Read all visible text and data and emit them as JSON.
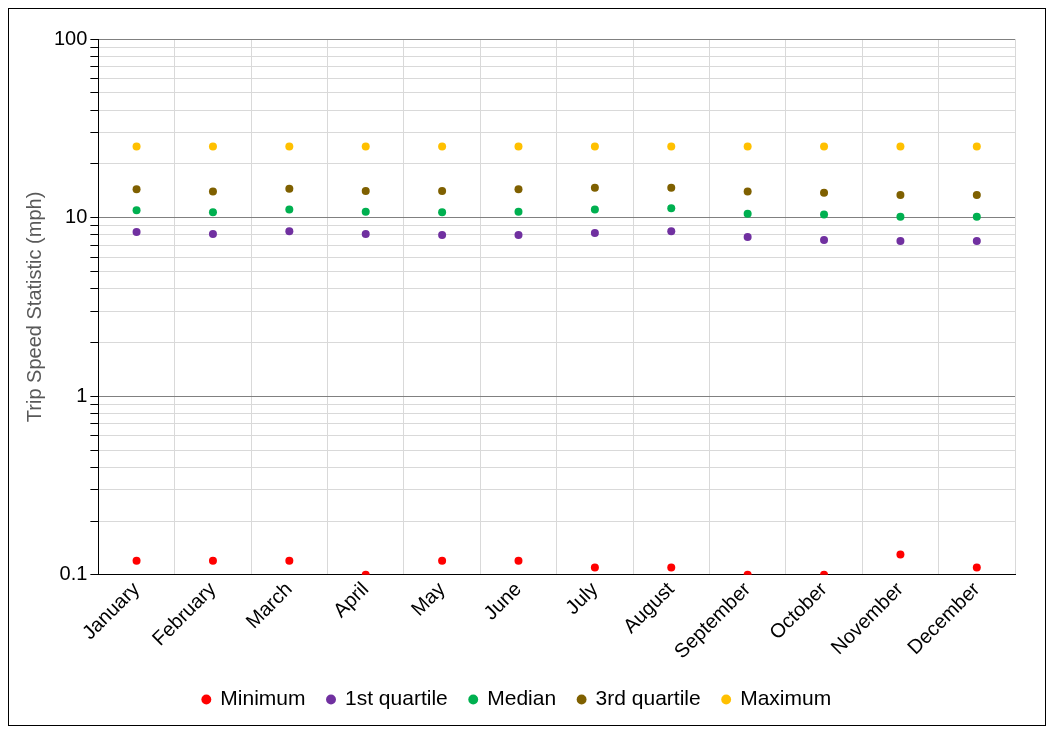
{
  "chart_data": {
    "type": "scatter",
    "ylabel": "Trip Speed Statistic (mph)",
    "categories": [
      "January",
      "February",
      "March",
      "April",
      "May",
      "June",
      "July",
      "August",
      "September",
      "October",
      "November",
      "December"
    ],
    "series": [
      {
        "name": "Minimum",
        "color": "#ff0000",
        "values": [
          0.12,
          0.12,
          0.12,
          0.1,
          0.12,
          0.12,
          0.11,
          0.11,
          0.1,
          0.1,
          0.13,
          0.11
        ]
      },
      {
        "name": "1st quartile",
        "color": "#7030a0",
        "values": [
          8.3,
          8.1,
          8.4,
          8.1,
          8.0,
          8.0,
          8.2,
          8.4,
          7.8,
          7.5,
          7.4,
          7.4
        ]
      },
      {
        "name": "Median",
        "color": "#00b050",
        "values": [
          11.0,
          10.7,
          11.1,
          10.8,
          10.7,
          10.8,
          11.1,
          11.3,
          10.5,
          10.4,
          10.1,
          10.1
        ]
      },
      {
        "name": "3rd quartile",
        "color": "#7f6000",
        "values": [
          14.4,
          14.0,
          14.5,
          14.1,
          14.1,
          14.4,
          14.7,
          14.7,
          14.0,
          13.8,
          13.4,
          13.4
        ]
      },
      {
        "name": "Maximum",
        "color": "#ffc000",
        "values": [
          25,
          25,
          25,
          25,
          25,
          25,
          25,
          25,
          25,
          25,
          25,
          25
        ]
      }
    ],
    "log": "y",
    "ylim": [
      0.1,
      100
    ],
    "yticks": [
      0.1,
      {
        "value": 0.2,
        "label": null
      },
      {
        "value": 0.3,
        "label": null
      },
      {
        "value": 0.4,
        "label": null
      },
      {
        "value": 0.5,
        "label": null
      },
      {
        "value": 0.6,
        "label": null
      },
      {
        "value": 0.7,
        "label": null
      },
      {
        "value": 0.8,
        "label": null
      },
      {
        "value": 0.9,
        "label": null
      },
      1,
      {
        "value": 2,
        "label": null
      },
      {
        "value": 3,
        "label": null
      },
      {
        "value": 4,
        "label": null
      },
      {
        "value": 5,
        "label": null
      },
      {
        "value": 6,
        "label": null
      },
      {
        "value": 7,
        "label": null
      },
      {
        "value": 8,
        "label": null
      },
      {
        "value": 9,
        "label": null
      },
      10,
      {
        "value": 20,
        "label": null
      },
      {
        "value": 30,
        "label": null
      },
      {
        "value": 40,
        "label": null
      },
      {
        "value": 50,
        "label": null
      },
      {
        "value": 60,
        "label": null
      },
      {
        "value": 70,
        "label": null
      },
      {
        "value": 80,
        "label": null
      },
      {
        "value": 90,
        "label": null
      },
      100
    ],
    "grid": true,
    "legend": "bottom",
    "marker": "circle"
  }
}
